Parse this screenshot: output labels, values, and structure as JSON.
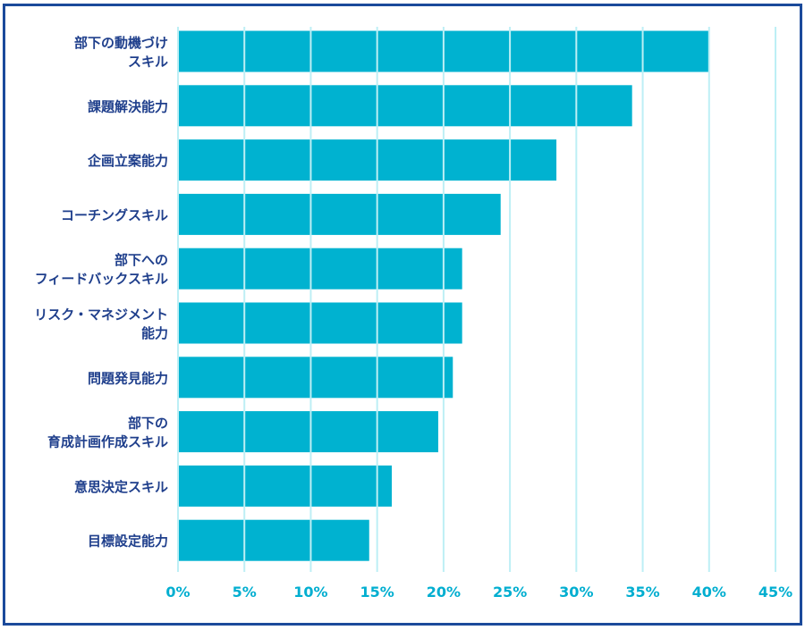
{
  "chart_data": {
    "type": "bar",
    "orientation": "horizontal",
    "categories": [
      [
        "部下の動機づけ",
        "スキル"
      ],
      [
        "課題解決能力"
      ],
      [
        "企画立案能力"
      ],
      [
        "コーチングスキル"
      ],
      [
        "部下への",
        "フィードバックスキル"
      ],
      [
        "リスク・マネジメント",
        "能力"
      ],
      [
        "問題発見能力"
      ],
      [
        "部下の",
        "育成計画作成スキル"
      ],
      [
        "意思決定スキル"
      ],
      [
        "目標設定能力"
      ]
    ],
    "values": [
      40.0,
      34.2,
      28.5,
      24.3,
      21.4,
      21.4,
      20.7,
      19.6,
      16.1,
      14.4
    ],
    "xlim": [
      0,
      45
    ],
    "xticks": [
      0,
      5,
      10,
      15,
      20,
      25,
      30,
      35,
      40,
      45
    ],
    "xtick_labels": [
      "0%",
      "5%",
      "10%",
      "15%",
      "20%",
      "25%",
      "30%",
      "35%",
      "40%",
      "45%"
    ],
    "grid": "vertical",
    "colors": {
      "bar": "#00b2d0",
      "grid": "#bdeff5",
      "label": "#1f3f8c",
      "tick": "#00aed0",
      "frame": "#1b4a9b"
    }
  }
}
